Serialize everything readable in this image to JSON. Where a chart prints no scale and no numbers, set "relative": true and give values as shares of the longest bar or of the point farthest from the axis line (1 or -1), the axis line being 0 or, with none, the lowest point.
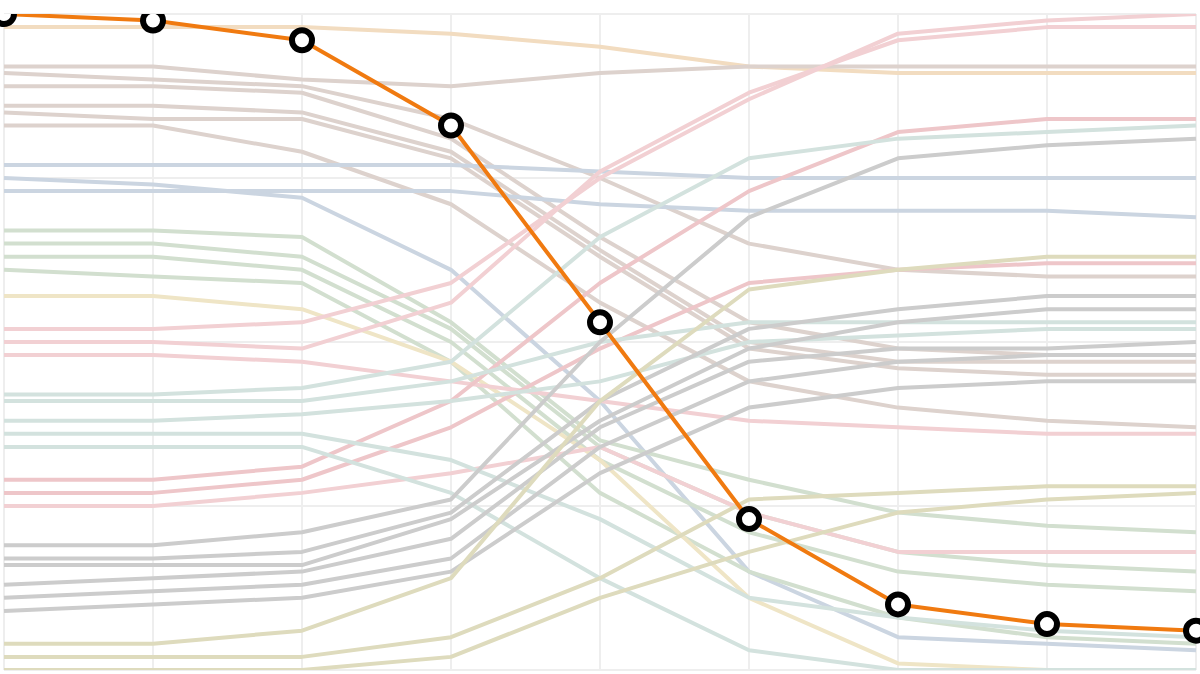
{
  "chart_data": {
    "type": "line",
    "relative": true,
    "grid": true,
    "categories": [
      null,
      null,
      null,
      null,
      null,
      null,
      null,
      null,
      null
    ],
    "series": [
      {
        "color": "#f2dcc0",
        "values": [
          0.98,
          0.98,
          0.98,
          0.97,
          0.95,
          0.92,
          0.91,
          0.91,
          0.91
        ]
      },
      {
        "color": "#ddd2cd",
        "values": [
          0.92,
          0.92,
          0.9,
          0.89,
          0.91,
          0.92,
          0.92,
          0.92,
          0.92
        ]
      },
      {
        "color": "#ddd2cd",
        "values": [
          0.91,
          0.9,
          0.89,
          0.84,
          0.75,
          0.65,
          0.61,
          0.6,
          0.6
        ]
      },
      {
        "color": "#ddd2cd",
        "values": [
          0.89,
          0.89,
          0.88,
          0.81,
          0.66,
          0.53,
          0.49,
          0.48,
          0.48
        ]
      },
      {
        "color": "#ddd2cd",
        "values": [
          0.86,
          0.86,
          0.85,
          0.79,
          0.64,
          0.5,
          0.47,
          0.47,
          0.47
        ]
      },
      {
        "color": "#ddd2cd",
        "values": [
          0.85,
          0.84,
          0.84,
          0.78,
          0.63,
          0.49,
          0.46,
          0.45,
          0.45
        ]
      },
      {
        "color": "#ddd2cd",
        "values": [
          0.83,
          0.83,
          0.79,
          0.71,
          0.56,
          0.44,
          0.4,
          0.38,
          0.37
        ]
      },
      {
        "color": "#cbd5e1",
        "values": [
          0.77,
          0.77,
          0.77,
          0.77,
          0.76,
          0.75,
          0.75,
          0.75,
          0.75
        ]
      },
      {
        "color": "#cbd5e1",
        "values": [
          0.73,
          0.73,
          0.73,
          0.73,
          0.71,
          0.7,
          0.7,
          0.7,
          0.69
        ]
      },
      {
        "color": "#cbd5e1",
        "values": [
          0.75,
          0.74,
          0.72,
          0.61,
          0.41,
          0.15,
          0.05,
          0.04,
          0.03
        ]
      },
      {
        "color": "#d2dfcf",
        "values": [
          0.67,
          0.67,
          0.66,
          0.53,
          0.35,
          0.29,
          0.24,
          0.22,
          0.21
        ]
      },
      {
        "color": "#d2dfcf",
        "values": [
          0.65,
          0.65,
          0.63,
          0.52,
          0.34,
          0.24,
          0.18,
          0.16,
          0.15
        ]
      },
      {
        "color": "#d2dfcf",
        "values": [
          0.63,
          0.63,
          0.61,
          0.5,
          0.32,
          0.21,
          0.15,
          0.13,
          0.12
        ]
      },
      {
        "color": "#d2dfcf",
        "values": [
          0.61,
          0.6,
          0.59,
          0.47,
          0.27,
          0.15,
          0.08,
          0.05,
          0.04
        ]
      },
      {
        "color": "#efe5c6",
        "values": [
          0.57,
          0.57,
          0.55,
          0.47,
          0.32,
          0.11,
          0.01,
          0,
          0
        ]
      },
      {
        "color": "#f2d0d3",
        "values": [
          0.52,
          0.52,
          0.53,
          0.59,
          0.75,
          0.87,
          0.97,
          0.99,
          1.0
        ]
      },
      {
        "color": "#f2d0d3",
        "values": [
          0.5,
          0.5,
          0.49,
          0.56,
          0.76,
          0.88,
          0.96,
          0.98,
          0.98
        ]
      },
      {
        "color": "#f2d0d3",
        "values": [
          0.48,
          0.48,
          0.47,
          0.44,
          0.41,
          0.38,
          0.37,
          0.36,
          0.36
        ]
      },
      {
        "color": "#eec6c9",
        "values": [
          0.29,
          0.29,
          0.31,
          0.41,
          0.59,
          0.73,
          0.82,
          0.84,
          0.84
        ]
      },
      {
        "color": "#eec6c9",
        "values": [
          0.27,
          0.27,
          0.29,
          0.37,
          0.49,
          0.59,
          0.61,
          0.62,
          0.62
        ]
      },
      {
        "color": "#f2d0d3",
        "values": [
          0.25,
          0.25,
          0.27,
          0.3,
          0.34,
          0.24,
          0.18,
          0.18,
          0.18
        ]
      },
      {
        "color": "#d3e2de",
        "values": [
          0.42,
          0.42,
          0.43,
          0.47,
          0.66,
          0.78,
          0.81,
          0.82,
          0.83
        ]
      },
      {
        "color": "#d3e2de",
        "values": [
          0.41,
          0.41,
          0.41,
          0.44,
          0.5,
          0.53,
          0.53,
          0.53,
          0.53
        ]
      },
      {
        "color": "#d3e2de",
        "values": [
          0.38,
          0.38,
          0.39,
          0.41,
          0.44,
          0.5,
          0.51,
          0.52,
          0.52
        ]
      },
      {
        "color": "#d3e2de",
        "values": [
          0.36,
          0.36,
          0.36,
          0.32,
          0.23,
          0.11,
          0.08,
          0.06,
          0.05
        ]
      },
      {
        "color": "#d3e2de",
        "values": [
          0.34,
          0.34,
          0.34,
          0.27,
          0.14,
          0.03,
          0,
          0,
          0
        ]
      },
      {
        "color": "#cccccc",
        "values": [
          0.19,
          0.19,
          0.21,
          0.26,
          0.5,
          0.69,
          0.78,
          0.8,
          0.81
        ]
      },
      {
        "color": "#cccccc",
        "values": [
          0.17,
          0.17,
          0.18,
          0.24,
          0.41,
          0.52,
          0.55,
          0.57,
          0.57
        ]
      },
      {
        "color": "#cccccc",
        "values": [
          0.16,
          0.16,
          0.16,
          0.23,
          0.38,
          0.49,
          0.53,
          0.55,
          0.55
        ]
      },
      {
        "color": "#cccccc",
        "values": [
          0.13,
          0.14,
          0.15,
          0.2,
          0.37,
          0.47,
          0.49,
          0.49,
          0.5
        ]
      },
      {
        "color": "#cccccc",
        "values": [
          0.11,
          0.12,
          0.13,
          0.17,
          0.34,
          0.44,
          0.47,
          0.48,
          0.48
        ]
      },
      {
        "color": "#cccccc",
        "values": [
          0.09,
          0.1,
          0.11,
          0.15,
          0.3,
          0.4,
          0.43,
          0.44,
          0.44
        ]
      },
      {
        "color": "#dedbbd",
        "values": [
          0.04,
          0.04,
          0.06,
          0.14,
          0.41,
          0.58,
          0.61,
          0.63,
          0.63
        ]
      },
      {
        "color": "#dedbbd",
        "values": [
          0.02,
          0.02,
          0.02,
          0.05,
          0.14,
          0.26,
          0.27,
          0.28,
          0.28
        ]
      },
      {
        "color": "#dedbbd",
        "values": [
          0,
          0,
          0,
          0.02,
          0.11,
          0.18,
          0.24,
          0.26,
          0.27
        ]
      },
      {
        "color": "#f07a10",
        "marker": "circle",
        "values": [
          1.0,
          0.99,
          0.96,
          0.83,
          0.53,
          0.23,
          0.1,
          0.07,
          0.06
        ]
      }
    ]
  }
}
